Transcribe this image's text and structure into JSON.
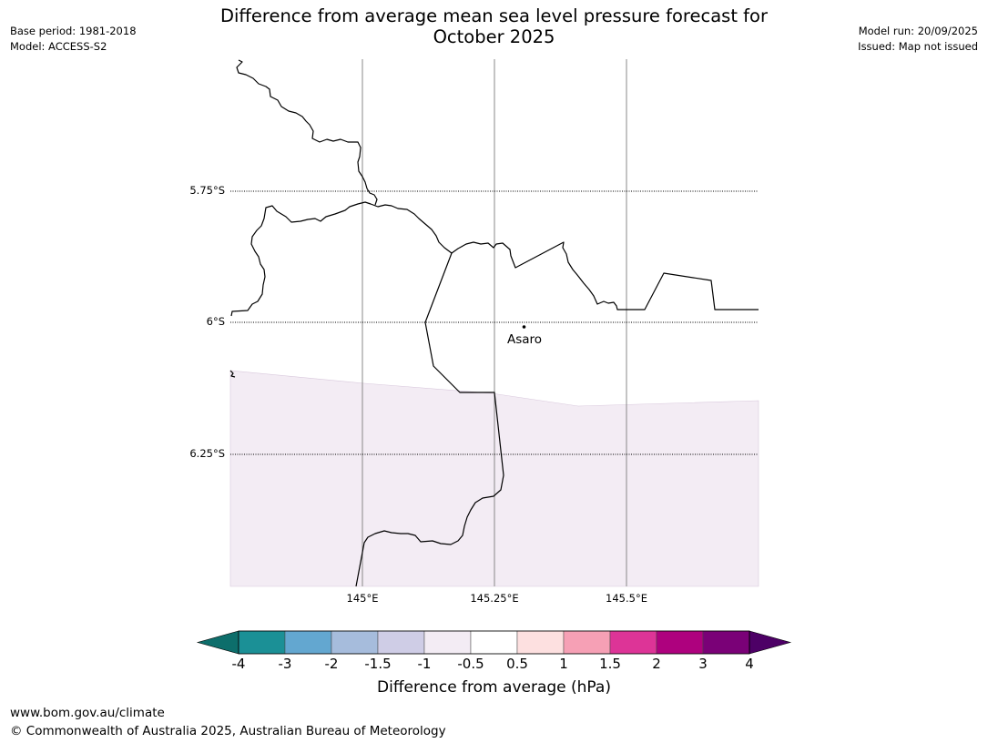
{
  "header": {
    "title_line1": "Difference from average mean sea level pressure forecast for",
    "title_line2": "October 2025",
    "base_period": "Base period: 1981-2018",
    "model": "Model: ACCESS-S2",
    "model_run": "Model run: 20/09/2025",
    "issued": "Issued: Map not issued"
  },
  "map": {
    "lat_labels": [
      "5.75°S",
      "6°S",
      "6.25°S"
    ],
    "lon_labels": [
      "145°E",
      "145.25°E",
      "145.5°E"
    ],
    "place_label": "Asaro",
    "shaded_region_color": "#f3ecf4"
  },
  "colorbar": {
    "tick_labels": [
      "-4",
      "-3",
      "-2",
      "-1.5",
      "-1",
      "-0.5",
      "0.5",
      "1",
      "1.5",
      "2",
      "3",
      "4"
    ],
    "colors": [
      "#0d6e6b",
      "#1b9096",
      "#63a7d0",
      "#a6bcdc",
      "#cfcde6",
      "#f3ecf4",
      "#ffffff",
      "#fde0e0",
      "#f6a0b5",
      "#dd3497",
      "#ae017e",
      "#7a0177",
      "#4d0066"
    ],
    "label": "Difference from average (hPa)"
  },
  "footer": {
    "url": "www.bom.gov.au/climate",
    "copyright": "© Commonwealth of Australia 2025, Australian Bureau of Meteorology"
  }
}
